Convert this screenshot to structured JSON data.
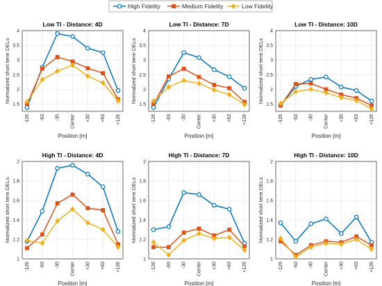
{
  "legend": {
    "items": [
      {
        "label": "High Fidelity",
        "color": "#0072BD",
        "marker": "circle"
      },
      {
        "label": "Medium Fidelity",
        "color": "#D95319",
        "marker": "square"
      },
      {
        "label": "Low Fidelity",
        "color": "#EDB120",
        "marker": "diamond"
      }
    ]
  },
  "chart_data": [
    {
      "type": "line",
      "title": "Low TI - Distance: 4D",
      "xlabel": "Position [m]",
      "ylabel": "Normalized short term DELs",
      "categories": [
        "-126",
        "-63",
        "-30",
        "Center",
        "+30",
        "+63",
        "+126"
      ],
      "ylim": [
        1.25,
        4
      ],
      "yticks": [
        1.5,
        2,
        2.5,
        3,
        3.5,
        4
      ],
      "grid": true,
      "series": [
        {
          "name": "High Fidelity",
          "values": [
            1.38,
            2.75,
            3.9,
            3.8,
            3.4,
            3.25,
            1.96
          ]
        },
        {
          "name": "Medium Fidelity",
          "values": [
            1.5,
            2.7,
            3.1,
            2.95,
            2.72,
            2.55,
            1.66
          ]
        },
        {
          "name": "Low Fidelity",
          "values": [
            1.58,
            2.33,
            2.62,
            2.82,
            2.45,
            2.22,
            1.6
          ]
        }
      ]
    },
    {
      "type": "line",
      "title": "Low TI - Distance: 7D",
      "xlabel": "Position [m]",
      "ylabel": "Normalized short term DELs",
      "categories": [
        "-126",
        "-63",
        "-30",
        "Center",
        "+30",
        "+63",
        "+126"
      ],
      "ylim": [
        1.25,
        4
      ],
      "yticks": [
        1.5,
        2,
        2.5,
        3,
        3.5,
        4
      ],
      "grid": true,
      "series": [
        {
          "name": "High Fidelity",
          "values": [
            1.38,
            2.35,
            3.25,
            3.08,
            2.67,
            2.43,
            2.04
          ]
        },
        {
          "name": "Medium Fidelity",
          "values": [
            1.5,
            2.44,
            2.7,
            2.42,
            2.15,
            2.04,
            1.57
          ]
        },
        {
          "name": "Low Fidelity",
          "values": [
            1.6,
            2.08,
            2.3,
            2.2,
            1.98,
            1.82,
            1.48
          ]
        }
      ]
    },
    {
      "type": "line",
      "title": "Low TI - Distance: 10D",
      "xlabel": "Position [m]",
      "ylabel": "Normalized short term DELs",
      "categories": [
        "-126",
        "-63",
        "-30",
        "Center",
        "+30",
        "+63",
        "+126"
      ],
      "ylim": [
        1.25,
        4
      ],
      "yticks": [
        1.5,
        2,
        2.5,
        3,
        3.5,
        4
      ],
      "grid": true,
      "series": [
        {
          "name": "High Fidelity",
          "values": [
            1.45,
            2.1,
            2.34,
            2.42,
            2.08,
            1.96,
            1.6
          ]
        },
        {
          "name": "Medium Fidelity",
          "values": [
            1.45,
            2.18,
            2.2,
            2.0,
            1.82,
            1.7,
            1.45
          ]
        },
        {
          "name": "Low Fidelity",
          "values": [
            1.52,
            1.92,
            2.0,
            1.88,
            1.72,
            1.62,
            1.33
          ]
        }
      ]
    },
    {
      "type": "line",
      "title": "High TI - Distance: 4D",
      "xlabel": "Position [m]",
      "ylabel": "Normalized short term DELs",
      "categories": [
        "-126",
        "-63",
        "-30",
        "Center",
        "+30",
        "+63",
        "+126"
      ],
      "ylim": [
        1,
        2
      ],
      "yticks": [
        1,
        1.2,
        1.4,
        1.6,
        1.8,
        2
      ],
      "grid": true,
      "series": [
        {
          "name": "High Fidelity",
          "values": [
            1.18,
            1.49,
            1.93,
            1.96,
            1.87,
            1.74,
            1.28
          ]
        },
        {
          "name": "Medium Fidelity",
          "values": [
            1.11,
            1.25,
            1.57,
            1.66,
            1.52,
            1.5,
            1.15
          ]
        },
        {
          "name": "Low Fidelity",
          "values": [
            1.19,
            1.16,
            1.39,
            1.51,
            1.37,
            1.3,
            1.12
          ]
        }
      ]
    },
    {
      "type": "line",
      "title": "High TI - Distance: 7D",
      "xlabel": "Position [m]",
      "ylabel": "Normalized short term DELs",
      "categories": [
        "-126",
        "-63",
        "-30",
        "Center",
        "+30",
        "+63",
        "+126"
      ],
      "ylim": [
        1,
        2
      ],
      "yticks": [
        1,
        1.2,
        1.4,
        1.6,
        1.8,
        2
      ],
      "grid": true,
      "series": [
        {
          "name": "High Fidelity",
          "values": [
            1.3,
            1.33,
            1.68,
            1.66,
            1.55,
            1.51,
            1.16
          ]
        },
        {
          "name": "Medium Fidelity",
          "values": [
            1.12,
            1.12,
            1.27,
            1.31,
            1.24,
            1.3,
            1.13
          ]
        },
        {
          "name": "Low Fidelity",
          "values": [
            1.17,
            1.04,
            1.19,
            1.26,
            1.21,
            1.22,
            1.09
          ]
        }
      ]
    },
    {
      "type": "line",
      "title": "High TI - Distance: 10D",
      "xlabel": "Position [m]",
      "ylabel": "Normalized short term DELs",
      "categories": [
        "-126",
        "-63",
        "-30",
        "Center",
        "+30",
        "+63",
        "+126"
      ],
      "ylim": [
        1,
        2
      ],
      "yticks": [
        1,
        1.2,
        1.4,
        1.6,
        1.8,
        2
      ],
      "grid": true,
      "series": [
        {
          "name": "High Fidelity",
          "values": [
            1.37,
            1.18,
            1.36,
            1.41,
            1.26,
            1.43,
            1.17
          ]
        },
        {
          "name": "Medium Fidelity",
          "values": [
            1.18,
            1.04,
            1.14,
            1.18,
            1.17,
            1.23,
            1.14
          ]
        },
        {
          "name": "Low Fidelity",
          "values": [
            1.21,
            1.02,
            1.12,
            1.16,
            1.15,
            1.2,
            1.1
          ]
        }
      ]
    }
  ]
}
